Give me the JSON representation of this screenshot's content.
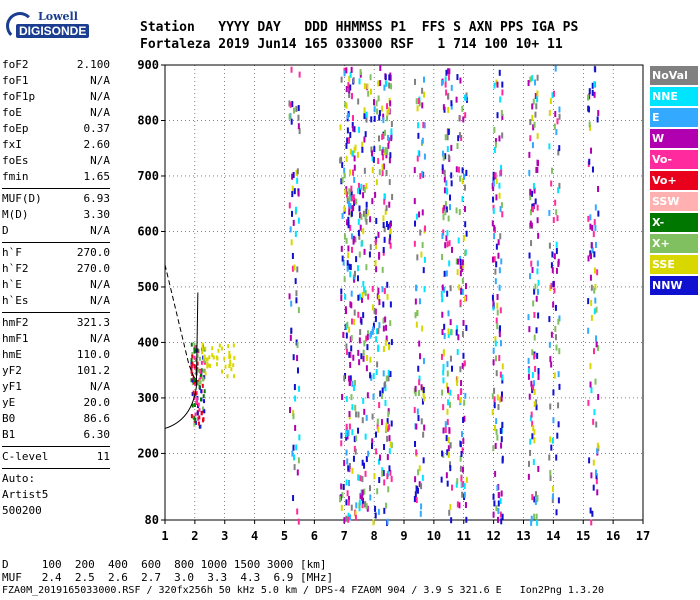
{
  "logo": {
    "line1": "Lowell",
    "line2": "DIGISONDE"
  },
  "header": {
    "line1": "Station   YYYY DAY   DDD HHMMSS P1  FFS S AXN PPS IGA PS",
    "line2": "Fortaleza 2019 Jun14 165 033000 RSF   1 714 100 10+ 11"
  },
  "params": [
    [
      {
        "k": "foF2",
        "v": "2.100"
      },
      {
        "k": "foF1",
        "v": "N/A"
      },
      {
        "k": "foF1p",
        "v": "N/A"
      },
      {
        "k": "foE",
        "v": "N/A"
      },
      {
        "k": "foEp",
        "v": "0.37"
      },
      {
        "k": "fxI",
        "v": "2.60"
      },
      {
        "k": "foEs",
        "v": "N/A"
      },
      {
        "k": "fmin",
        "v": "1.65"
      }
    ],
    [
      {
        "k": "MUF(D)",
        "v": "6.93"
      },
      {
        "k": "M(D)",
        "v": "3.30"
      },
      {
        "k": "D",
        "v": "N/A"
      }
    ],
    [
      {
        "k": "h`F",
        "v": "270.0"
      },
      {
        "k": "h`F2",
        "v": "270.0"
      },
      {
        "k": "h`E",
        "v": "N/A"
      },
      {
        "k": "h`Es",
        "v": "N/A"
      }
    ],
    [
      {
        "k": "hmF2",
        "v": "321.3"
      },
      {
        "k": "hmF1",
        "v": "N/A"
      },
      {
        "k": "hmE",
        "v": "110.0"
      },
      {
        "k": "yF2",
        "v": "101.2"
      },
      {
        "k": "yF1",
        "v": "N/A"
      },
      {
        "k": "yE",
        "v": "20.0"
      },
      {
        "k": "B0",
        "v": "86.6"
      },
      {
        "k": "B1",
        "v": "6.30"
      }
    ],
    [
      {
        "k": "C-level",
        "v": "11"
      }
    ],
    [
      {
        "k": "Auto:",
        "v": ""
      },
      {
        "k": "Artist5",
        "v": ""
      },
      {
        "k": "500200",
        "v": ""
      }
    ]
  ],
  "legend": [
    {
      "label": "NoVal",
      "color": "#808080"
    },
    {
      "label": "NNE",
      "color": "#00e5ff"
    },
    {
      "label": "E",
      "color": "#33aaff"
    },
    {
      "label": "W",
      "color": "#b000b0"
    },
    {
      "label": "Vo-",
      "color": "#ff2a9d"
    },
    {
      "label": "Vo+",
      "color": "#e8001c"
    },
    {
      "label": "SSW",
      "color": "#ffb0b0"
    },
    {
      "label": "X-",
      "color": "#007800"
    },
    {
      "label": "X+",
      "color": "#80c060"
    },
    {
      "label": "SSE",
      "color": "#d8d800"
    },
    {
      "label": "NNW",
      "color": "#1010d0"
    }
  ],
  "axes": {
    "x_ticks": [
      "1",
      "2",
      "3",
      "4",
      "5",
      "6",
      "7",
      "8",
      "9",
      "10",
      "11",
      "12",
      "13",
      "14",
      "15",
      "16",
      "17"
    ],
    "y_ticks": [
      "80",
      "200",
      "300",
      "400",
      "500",
      "600",
      "700",
      "800",
      "900"
    ]
  },
  "chart_data": {
    "type": "scatter",
    "x_range": [
      1,
      17
    ],
    "y_range": [
      80,
      900
    ],
    "vertical_columns_mhz": [
      5.3,
      7.0,
      7.2,
      7.6,
      8.0,
      8.4,
      9.5,
      10.4,
      10.9,
      12.1,
      13.3,
      14.0,
      15.3
    ]
  },
  "footer": {
    "line1": "D     100  200  400  600  800 1000 1500 3000 [km]",
    "line2": "MUF   2.4  2.5  2.6  2.7  3.0  3.3  4.3  6.9 [MHz]",
    "file": "FZA0M_2019165033000.RSF / 320fx256h 50 kHz 5.0 km / DPS-4 FZA0M 904 / 3.9 S 321.6 E   Ion2Png 1.3.20"
  }
}
